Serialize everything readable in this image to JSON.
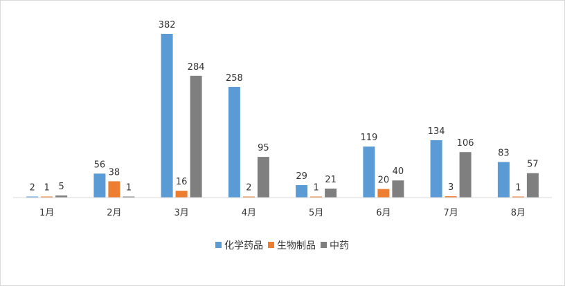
{
  "chart_data": {
    "type": "bar",
    "categories": [
      "1月",
      "2月",
      "3月",
      "4月",
      "5月",
      "6月",
      "7月",
      "8月"
    ],
    "series": [
      {
        "name": "化学药品",
        "color": "#5b9bd5",
        "values": [
          2,
          56,
          382,
          258,
          29,
          119,
          134,
          83
        ]
      },
      {
        "name": "生物制品",
        "color": "#ed7d31",
        "values": [
          1,
          38,
          16,
          2,
          1,
          20,
          3,
          1
        ]
      },
      {
        "name": "中药",
        "color": "#7f7f7f",
        "values": [
          5,
          1,
          284,
          95,
          21,
          40,
          106,
          57
        ]
      }
    ],
    "data_labels": true,
    "grid": false,
    "legend_position": "bottom",
    "axis_line_color": "#d9d9d9",
    "ylim": [
      0,
      400
    ]
  }
}
